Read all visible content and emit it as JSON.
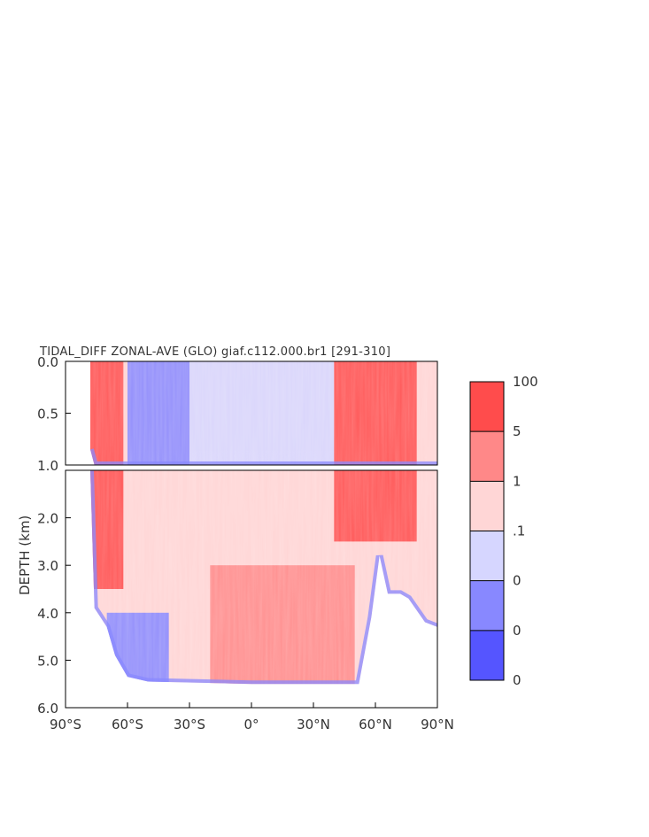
{
  "chart_data": {
    "type": "heatmap",
    "title": "TIDAL_DIFF ZONAL-AVE (GLO) giaf.c112.000.br1 [291-310]",
    "ylabel": "DEPTH (km)",
    "xlabel": "",
    "xlim": [
      -90,
      90
    ],
    "ylim_upper_panel": [
      0.0,
      1.0
    ],
    "ylim_lower_panel": [
      1.0,
      6.0
    ],
    "x_ticks": [
      "90°S",
      "60°S",
      "30°S",
      "0°",
      "30°N",
      "60°N",
      "90°N"
    ],
    "y_ticks_upper": [
      "0.0",
      "0.5",
      "1.0"
    ],
    "y_ticks_lower": [
      "2.0",
      "3.0",
      "4.0",
      "5.0",
      "6.0"
    ],
    "colorbar": {
      "labels": [
        "100",
        "5",
        "1",
        ".1",
        "0",
        "0",
        "0"
      ],
      "colors": [
        "#ff4c4c",
        "#ff8888",
        "#ffd6d6",
        "#d6d6ff",
        "#8888ff",
        "#5555ff"
      ]
    },
    "ocean_floor_depth_km": [
      {
        "lat": -78,
        "depth": 0.85
      },
      {
        "lat": -76,
        "depth": 3.9
      },
      {
        "lat": -70,
        "depth": 4.3
      },
      {
        "lat": -66,
        "depth": 4.9
      },
      {
        "lat": -60,
        "depth": 5.35
      },
      {
        "lat": -50,
        "depth": 5.45
      },
      {
        "lat": 0,
        "depth": 5.5
      },
      {
        "lat": 52,
        "depth": 5.5
      },
      {
        "lat": 58,
        "depth": 4.1
      },
      {
        "lat": 62,
        "depth": 2.8
      },
      {
        "lat": 66,
        "depth": 3.6
      },
      {
        "lat": 72,
        "depth": 3.6
      },
      {
        "lat": 76,
        "depth": 3.7
      },
      {
        "lat": 84,
        "depth": 4.2
      },
      {
        "lat": 90,
        "depth": 4.3
      }
    ],
    "field_regions": [
      {
        "lat_range": [
          -78,
          -62
        ],
        "depth_range": [
          0,
          3.5
        ],
        "class": "100"
      },
      {
        "lat_range": [
          -60,
          -30
        ],
        "depth_range": [
          0,
          1.0
        ],
        "class": "0"
      },
      {
        "lat_range": [
          -30,
          40
        ],
        "depth_range": [
          0,
          1.0
        ],
        "class": ".1"
      },
      {
        "lat_range": [
          40,
          80
        ],
        "depth_range": [
          0,
          2.5
        ],
        "class": "100"
      },
      {
        "lat_range": [
          -60,
          -20
        ],
        "depth_range": [
          2.5,
          4.0
        ],
        "class": "1"
      },
      {
        "lat_range": [
          -20,
          50
        ],
        "depth_range": [
          3.0,
          5.5
        ],
        "class": "5"
      },
      {
        "lat_range": [
          -70,
          -40
        ],
        "depth_range": [
          4.0,
          5.5
        ],
        "class": "0"
      }
    ]
  }
}
